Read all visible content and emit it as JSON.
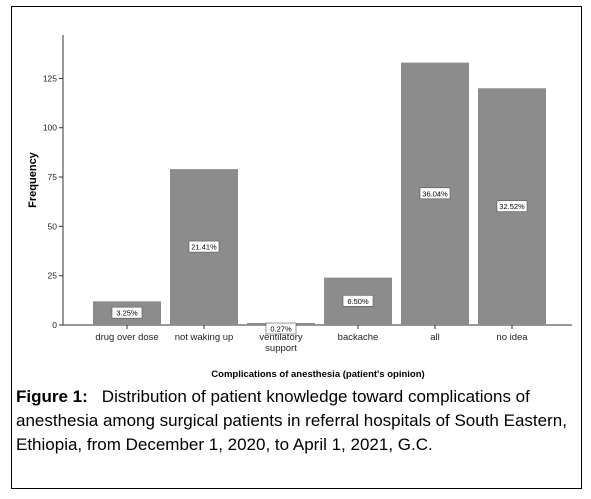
{
  "chart_data": {
    "type": "bar",
    "categories": [
      "drug over dose",
      "not waking up",
      "ventilatory support",
      "backache",
      "all",
      "no idea"
    ],
    "values": [
      12,
      79,
      1,
      24,
      133,
      120
    ],
    "percent_labels": [
      "3.25%",
      "21.41%",
      "0.27%",
      "6.50%",
      "36.04%",
      "32.52%"
    ],
    "color": "#8c8c8c",
    "ylim": [
      0,
      147
    ],
    "yticks": [
      0,
      25,
      50,
      75,
      100,
      125
    ],
    "ylabel": "Frequency",
    "xlabel": "Complications of anesthesia (patient's opinion)",
    "caption_label": "Figure 1:",
    "caption": "Distribution of patient knowledge toward complications of anesthesia among surgical patients in referral hospitals of South Eastern, Ethiopia, from December 1, 2020, to April 1, 2021, G.C."
  }
}
